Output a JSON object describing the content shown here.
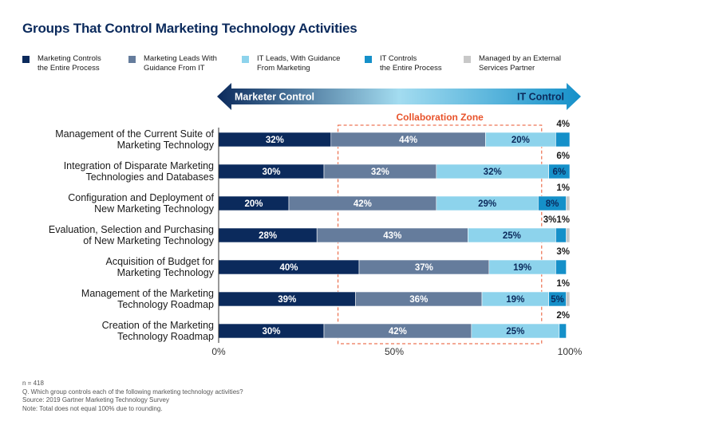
{
  "title": "Groups That Control Marketing Technology Activities",
  "legend": [
    {
      "label": "Marketing Controls\nthe Entire Process",
      "color": "#0b2a5c"
    },
    {
      "label": "Marketing Leads With\nGuidance From IT",
      "color": "#657c9c"
    },
    {
      "label": "IT Leads, With Guidance\nFrom Marketing",
      "color": "#8dd3ec"
    },
    {
      "label": "IT Controls\nthe Entire Process",
      "color": "#1590c9"
    },
    {
      "label": "Managed by an External\nServices Partner",
      "color": "#c8c8c8"
    }
  ],
  "arrow": {
    "left_label": "Marketer Control",
    "right_label": "IT Control"
  },
  "collaboration_zone": {
    "label": "Collaboration Zone",
    "color": "#e8532b",
    "x_range": [
      34,
      92
    ]
  },
  "chart_data": {
    "type": "bar",
    "orientation": "horizontal",
    "stacked": true,
    "categories": [
      "Management of the Current Suite of\nMarketing Technology",
      "Integration of Disparate Marketing\nTechnologies and Databases",
      "Configuration and Deployment of\nNew Marketing Technology",
      "Evaluation, Selection and Purchasing\nof New Marketing Technology",
      "Acquisition of Budget for\nMarketing Technology",
      "Management of the Marketing\nTechnology Roadmap",
      "Creation of the Marketing\nTechnology Roadmap"
    ],
    "series": [
      {
        "name": "Marketing Controls the Entire Process",
        "values": [
          32,
          30,
          20,
          28,
          40,
          39,
          30
        ]
      },
      {
        "name": "Marketing Leads With Guidance From IT",
        "values": [
          44,
          32,
          42,
          43,
          37,
          36,
          42
        ]
      },
      {
        "name": "IT Leads, With Guidance From Marketing",
        "values": [
          20,
          32,
          29,
          25,
          19,
          19,
          25
        ]
      },
      {
        "name": "IT Controls the Entire Process",
        "values": [
          4,
          6,
          8,
          3,
          3,
          5,
          2
        ]
      },
      {
        "name": "Managed by an External Services Partner",
        "values": [
          0,
          0,
          1,
          1,
          0,
          1,
          0
        ]
      }
    ],
    "value_labels": [
      [
        "32%",
        "44%",
        "20%",
        "4%",
        ""
      ],
      [
        "30%",
        "32%",
        "32%",
        "6%",
        ""
      ],
      [
        "20%",
        "42%",
        "29%",
        "8%",
        "1%"
      ],
      [
        "28%",
        "43%",
        "25%",
        "3%",
        "1%"
      ],
      [
        "40%",
        "37%",
        "19%",
        "3%",
        ""
      ],
      [
        "39%",
        "36%",
        "19%",
        "5%",
        "1%"
      ],
      [
        "30%",
        "42%",
        "25%",
        "2%",
        ""
      ]
    ],
    "outside_labels": [
      [
        "4%"
      ],
      [
        "6%"
      ],
      [
        "1%"
      ],
      [
        "3%",
        "1%"
      ],
      [
        "3%"
      ],
      [
        "1%"
      ],
      [
        "2%"
      ]
    ],
    "x_ticks": [
      "0%",
      "50%",
      "100%"
    ],
    "xlim": [
      0,
      100
    ]
  },
  "footer": [
    "n = 418",
    "Q. Which group controls each of the following marketing technology activities?",
    "Source: 2019 Gartner Marketing Technology Survey",
    "Note: Total does not equal 100% due to rounding."
  ]
}
